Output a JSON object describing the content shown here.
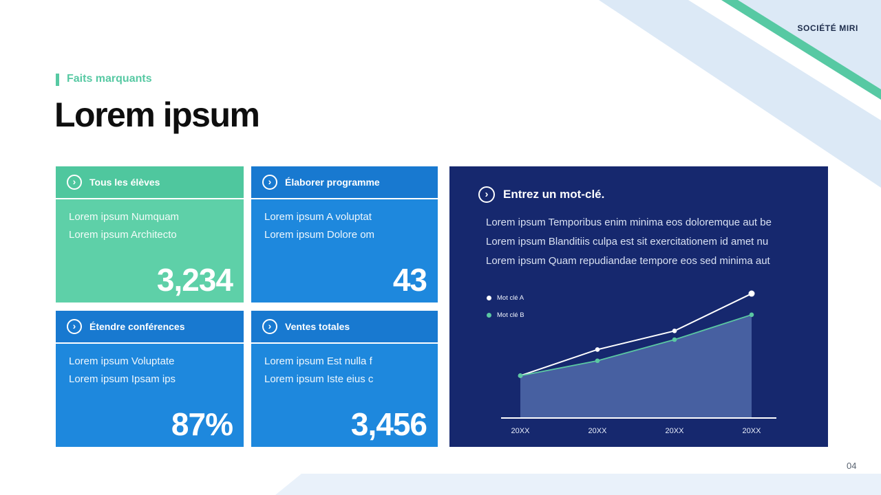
{
  "meta": {
    "company": "SOCIÉTÉ MIRI",
    "page_number": "04"
  },
  "header": {
    "eyebrow": "Faits marquants",
    "title": "Lorem ipsum"
  },
  "cards": [
    {
      "header": "Tous les élèves",
      "line1": "Lorem ipsum Numquam",
      "line2": "Lorem ipsum Architecto",
      "value": "3,234",
      "variant": "green"
    },
    {
      "header": "Élaborer programme",
      "line1": "Lorem ipsum A voluptat",
      "line2": "Lorem ipsum Dolore om",
      "value": "43",
      "variant": "blue"
    },
    {
      "header": "Étendre conférences",
      "line1": "Lorem ipsum Voluptate",
      "line2": "Lorem ipsum Ipsam ips",
      "value": "87%",
      "variant": "blue"
    },
    {
      "header": "Ventes totales",
      "line1": "Lorem ipsum Est nulla f",
      "line2": "Lorem ipsum Iste eius c",
      "value": "3,456",
      "variant": "blue"
    }
  ],
  "panel": {
    "title": "Entrez un mot-clé.",
    "lines": [
      "Lorem ipsum Temporibus enim minima eos doloremque aut be",
      "Lorem ipsum Blanditiis culpa est sit exercitationem id amet nu",
      "Lorem ipsum Quam repudiandae tempore eos sed minima aut"
    ],
    "legend": [
      {
        "label": "Mot clé A",
        "color": "#ffffff"
      },
      {
        "label": "Mot clé B",
        "color": "#5bc8a2"
      }
    ]
  },
  "chart_data": {
    "type": "area",
    "title": "Entrez un mot-clé.",
    "categories": [
      "20XX",
      "20XX",
      "20XX",
      "20XX"
    ],
    "series": [
      {
        "name": "Mot clé A",
        "color": "#ffffff",
        "values": [
          34,
          55,
          70,
          100
        ]
      },
      {
        "name": "Mot clé B",
        "color": "#5bc8a2",
        "values": [
          34,
          46,
          63,
          83
        ]
      }
    ],
    "ylim": [
      0,
      105
    ],
    "xlabel": "",
    "ylabel": "",
    "grid": false,
    "legend_position": "upper-left",
    "area_fill": "rgba(130,165,225,0.45)",
    "axis_color": "#ffffff"
  },
  "colors": {
    "accent_teal": "#57c9a3",
    "card_green_header": "#4fc79e",
    "card_green_body": "#5ed0a8",
    "card_blue_header": "#1879d0",
    "card_blue_body": "#1e88dd",
    "panel_navy": "#16286e",
    "deco_light_blue": "#dce9f6",
    "bottom_band": "#e9f1fa"
  }
}
